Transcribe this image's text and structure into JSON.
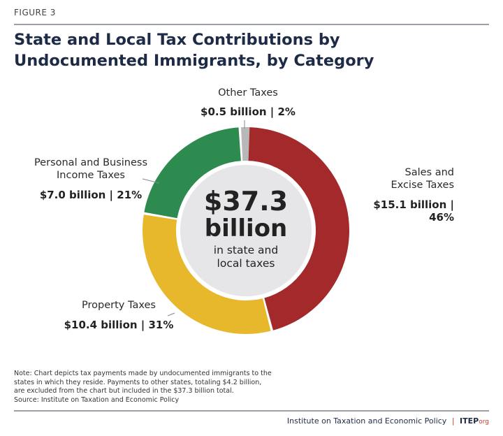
{
  "figure_label": "FIGURE 3",
  "chart_data": {
    "type": "pie",
    "title": "State and Local Tax Contributions by Undocumented Immigrants, by Category",
    "title_lines": [
      "State and Local Tax Contributions by",
      "Undocumented Immigrants, by Category"
    ],
    "donut": true,
    "center": {
      "amount": "$37.3",
      "unit": "billion",
      "line1": "in state and",
      "line2": "local taxes"
    },
    "slices": [
      {
        "name": "Sales and Excise Taxes",
        "label_lines": [
          "Sales and",
          "Excise Taxes"
        ],
        "value": 15.1,
        "value_label": "$15.1 billion | 46%",
        "percent": 46,
        "color": "#a3292a"
      },
      {
        "name": "Property Taxes",
        "label_lines": [
          "Property Taxes"
        ],
        "value": 10.4,
        "value_label": "$10.4 billion | 31%",
        "percent": 31,
        "color": "#e8b82c"
      },
      {
        "name": "Personal and Business Income Taxes",
        "label_lines": [
          "Personal and Business",
          "Income Taxes"
        ],
        "value": 7.0,
        "value_label": "$7.0 billion | 21%",
        "percent": 21,
        "color": "#2e8b4f"
      },
      {
        "name": "Other Taxes",
        "label_lines": [
          "Other Taxes"
        ],
        "value": 0.5,
        "value_label": "$0.5 billion | 2%",
        "percent": 2,
        "color": "#b8b8b8"
      }
    ]
  },
  "note_lines": [
    "Note: Chart depicts tax payments made by undocumented immigrants to the",
    "states in which they reside. Payments to other states, totaling $4.2 billion,",
    "are excluded from the chart but included in the $37.3 billion total.",
    "Source: Institute on Taxation and Economic Policy"
  ],
  "footer": {
    "org": "Institute on Taxation and Economic Policy",
    "brand": "ITEP",
    "brand_suffix": "org"
  }
}
